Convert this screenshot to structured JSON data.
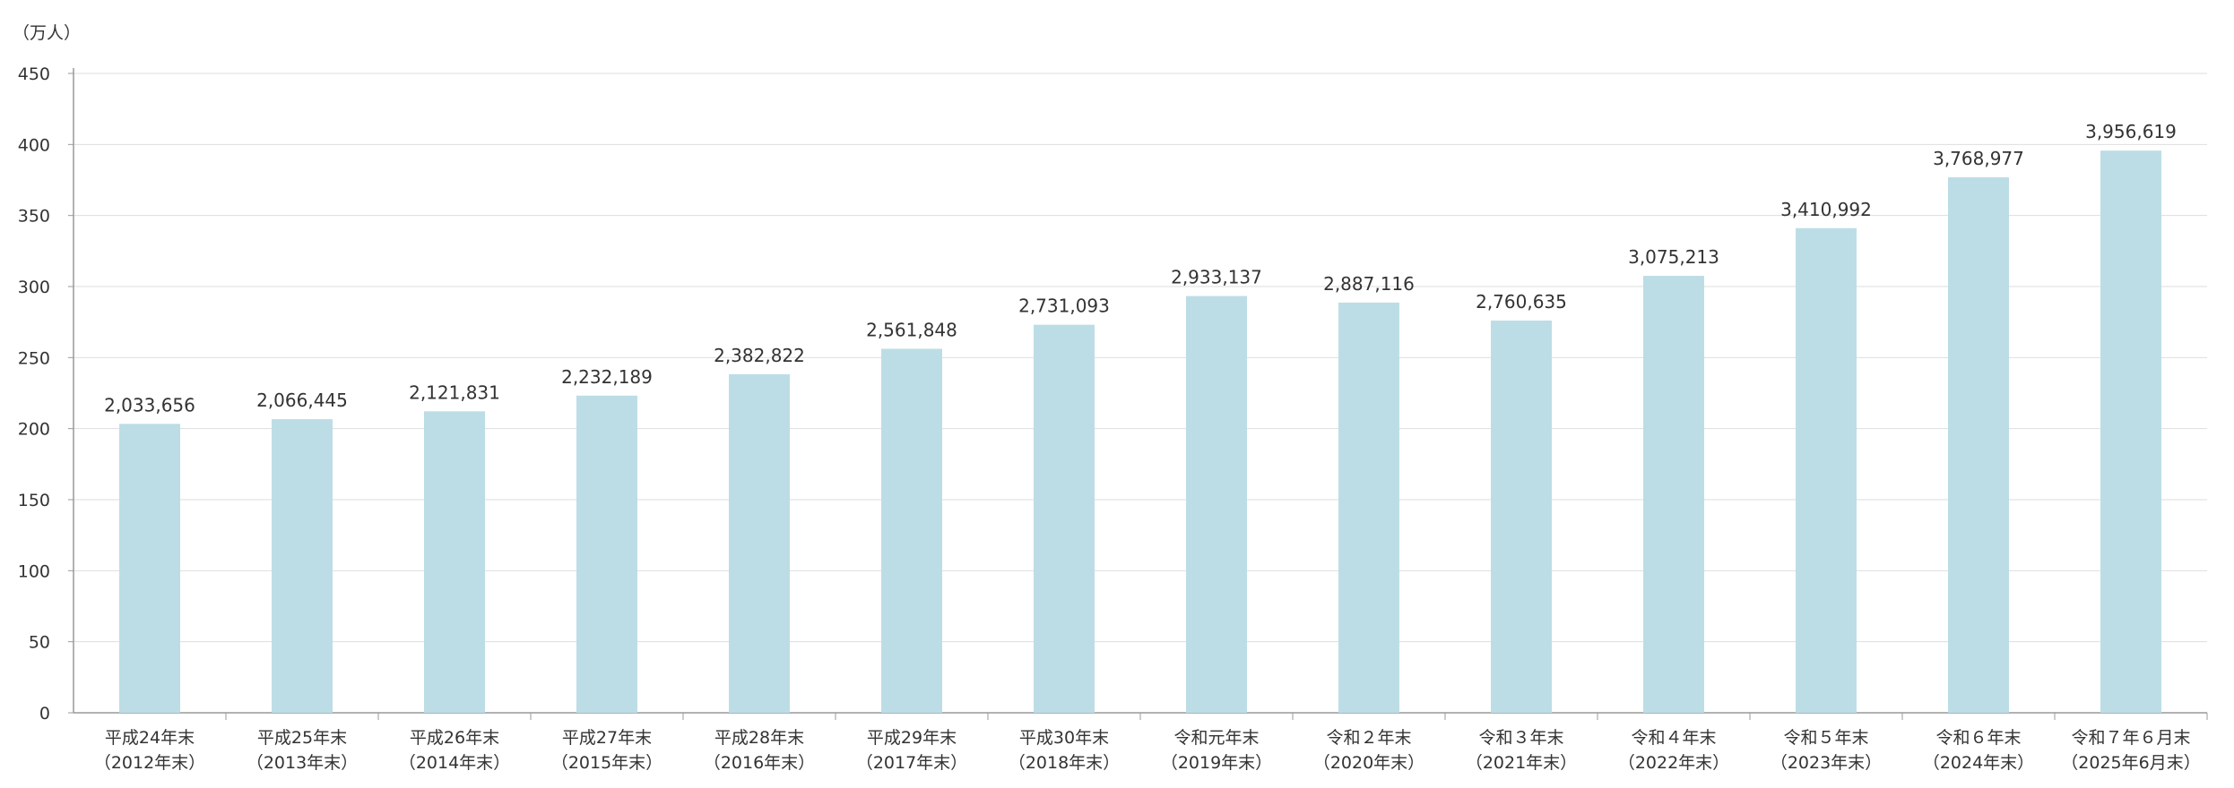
{
  "chart_data": {
    "type": "bar",
    "unit_label": "（万人）",
    "ylim": [
      0,
      450
    ],
    "yticks": [
      0,
      50,
      100,
      150,
      200,
      250,
      300,
      350,
      400,
      450
    ],
    "grid": true,
    "bar_color": "#bcdde6",
    "categories": [
      [
        "平成24年末",
        "（2012年末）"
      ],
      [
        "平成25年末",
        "（2013年末）"
      ],
      [
        "平成26年末",
        "（2014年末）"
      ],
      [
        "平成27年末",
        "（2015年末）"
      ],
      [
        "平成28年末",
        "（2016年末）"
      ],
      [
        "平成29年末",
        "（2017年末）"
      ],
      [
        "平成30年末",
        "（2018年末）"
      ],
      [
        "令和元年末",
        "（2019年末）"
      ],
      [
        "令和２年末",
        "（2020年末）"
      ],
      [
        "令和３年末",
        "（2021年末）"
      ],
      [
        "令和４年末",
        "（2022年末）"
      ],
      [
        "令和５年末",
        "（2023年末）"
      ],
      [
        "令和６年末",
        "（2024年末）"
      ],
      [
        "令和７年６月末",
        "（2025年6月末）"
      ]
    ],
    "values": [
      2033656,
      2066445,
      2121831,
      2232189,
      2382822,
      2561848,
      2731093,
      2933137,
      2887116,
      2760635,
      3075213,
      3410992,
      3768977,
      3956619
    ],
    "value_labels": [
      "2,033,656",
      "2,066,445",
      "2,121,831",
      "2,232,189",
      "2,382,822",
      "2,561,848",
      "2,731,093",
      "2,933,137",
      "2,887,116",
      "2,760,635",
      "3,075,213",
      "3,410,992",
      "3,768,977",
      "3,956,619"
    ]
  }
}
